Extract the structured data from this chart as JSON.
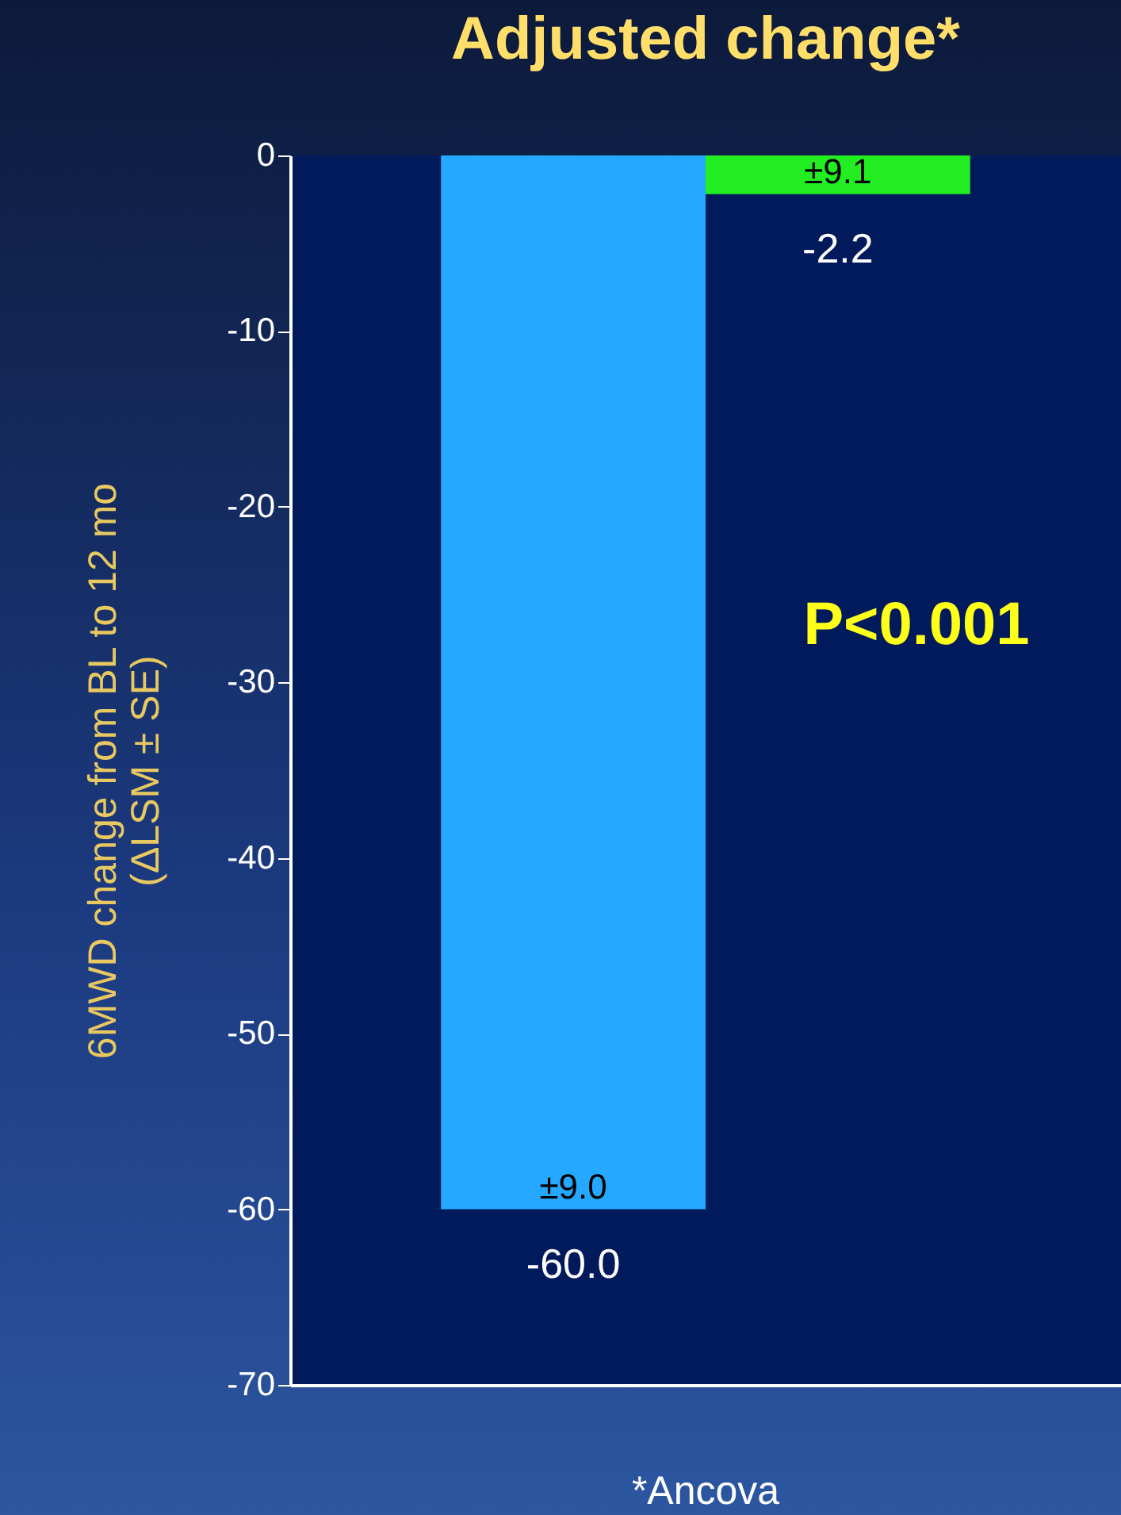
{
  "chart_data": {
    "type": "bar",
    "title": "Adjusted change*",
    "ylabel": "6MWD change from BL to 12 mo\n(ΔLSM ± SE)",
    "categories": [
      null,
      null
    ],
    "values": [
      -60.0,
      -2.2
    ],
    "colors": [
      "#25a8ff",
      "#22ee22"
    ],
    "value_labels": [
      "-60.0",
      "-2.2"
    ],
    "ylim": [
      -70,
      0
    ],
    "yticks": [
      0,
      -10,
      -20,
      -30,
      -40,
      -50,
      -60,
      -70
    ],
    "grid": false,
    "legend": false,
    "tick_labels": "y",
    "annotations": [
      {
        "text": "±9.0",
        "y": -60.0
      },
      {
        "text": "±9.1",
        "y": -2.2
      },
      "P<0.001",
      "*Ancova"
    ]
  }
}
